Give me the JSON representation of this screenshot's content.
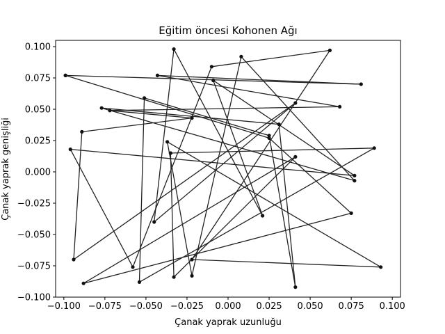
{
  "chart_data": {
    "type": "line",
    "title": "Eğitim öncesi Kohonen Ağı",
    "xlabel": "Çanak yaprak uzunluğu",
    "ylabel": "Çanak yaprak genişliği",
    "xlim": [
      -0.105,
      0.105
    ],
    "ylim": [
      -0.1,
      0.105
    ],
    "xticks": [
      "−0.100",
      "−0.075",
      "−0.050",
      "−0.025",
      "0.000",
      "0.025",
      "0.050",
      "0.075",
      "0.100"
    ],
    "yticks": [
      "−0.100",
      "−0.075",
      "−0.050",
      "−0.025",
      "0.000",
      "0.025",
      "0.050",
      "0.075",
      "0.100"
    ],
    "grid": false,
    "line_color": "#222222",
    "series": [
      {
        "points": [
          [
            -0.099,
            0.077
          ],
          [
            0.081,
            0.07
          ],
          [
            -0.043,
            0.077
          ],
          [
            0.068,
            0.052
          ],
          [
            -0.072,
            0.049
          ],
          [
            -0.022,
            0.043
          ],
          [
            -0.089,
            0.032
          ],
          [
            -0.094,
            -0.07
          ],
          [
            0.041,
            0.055
          ],
          [
            -0.045,
            -0.04
          ],
          [
            -0.033,
            0.098
          ],
          [
            0.021,
            -0.035
          ],
          [
            -0.009,
            0.073
          ],
          [
            0.077,
            -0.003
          ],
          [
            -0.096,
            0.018
          ],
          [
            -0.058,
            -0.076
          ],
          [
            -0.01,
            0.084
          ],
          [
            0.062,
            0.097
          ],
          [
            -0.022,
            -0.07
          ],
          [
            0.093,
            -0.076
          ],
          [
            -0.037,
            0.024
          ],
          [
            -0.022,
            -0.083
          ],
          [
            0.008,
            0.092
          ],
          [
            0.077,
            -0.007
          ],
          [
            -0.077,
            0.051
          ],
          [
            0.031,
            0.038
          ],
          [
            0.041,
            -0.092
          ],
          [
            0.025,
            0.029
          ],
          [
            -0.051,
            0.059
          ],
          [
            -0.054,
            -0.088
          ],
          [
            0.089,
            0.019
          ],
          [
            -0.035,
            0.015
          ],
          [
            -0.033,
            -0.084
          ],
          [
            0.041,
            0.012
          ],
          [
            -0.088,
            -0.089
          ],
          [
            0.075,
            -0.033
          ],
          [
            0.025,
            0.027
          ],
          [
            -0.099,
            0.077
          ]
        ]
      }
    ]
  }
}
